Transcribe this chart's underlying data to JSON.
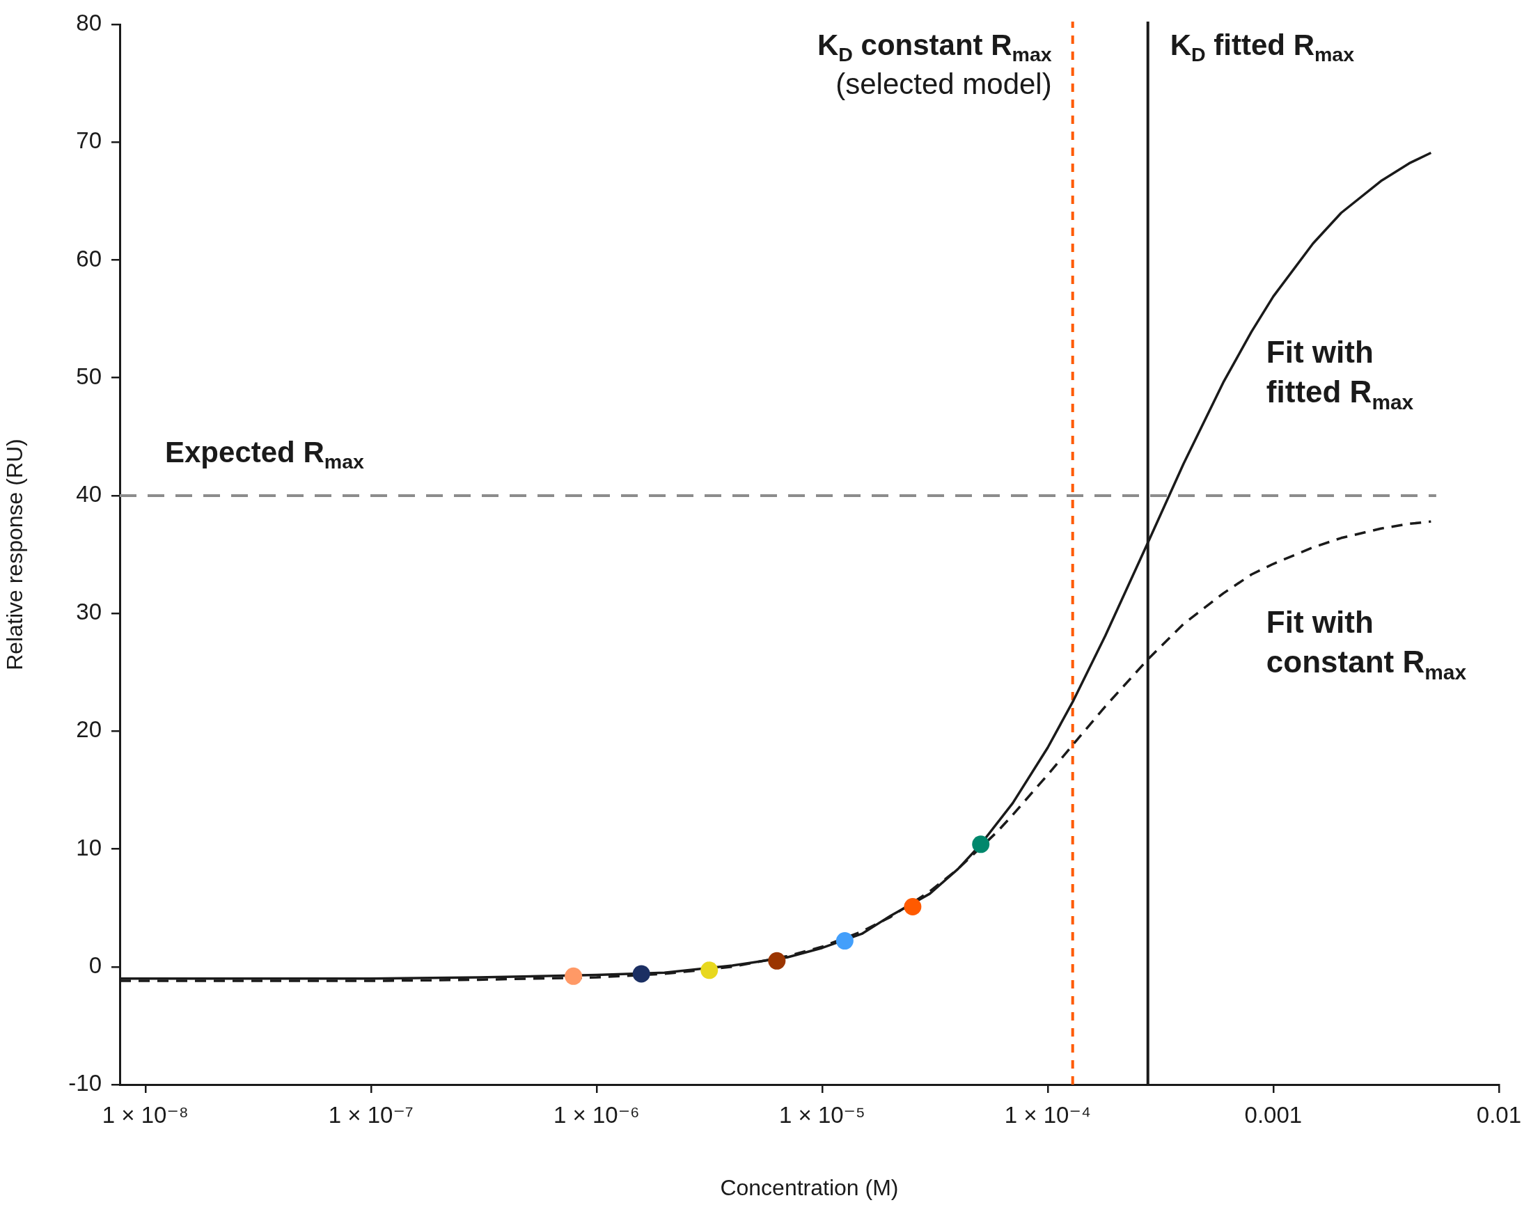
{
  "chart_data": {
    "type": "line",
    "xlabel": "Concentration (M)",
    "ylabel": "Relative response (RU)",
    "log": "x",
    "grid": false,
    "xlim": [
      7.7e-09,
      0.01
    ],
    "xticks": [
      {
        "value": 1e-08,
        "label": "1 × 10⁻⁸"
      },
      {
        "value": 1e-07,
        "label": "1 × 10⁻⁷"
      },
      {
        "value": 1e-06,
        "label": "1 × 10⁻⁶"
      },
      {
        "value": 1e-05,
        "label": "1 × 10⁻⁵"
      },
      {
        "value": 0.0001,
        "label": "1 × 10⁻⁴"
      },
      0.001,
      0.01
    ],
    "ylim": [
      -10,
      80
    ],
    "yticks": [
      -10,
      0,
      10,
      20,
      30,
      40,
      50,
      60,
      70,
      80
    ],
    "series": [
      {
        "name": "Fit with fitted R$_{max}$",
        "color": "#1a1a1a",
        "line_style": "solid",
        "marker": "none",
        "x": [
          7.7e-09,
          3e-08,
          1e-07,
          3e-07,
          1e-06,
          2e-06,
          4e-06,
          7e-06,
          1e-05,
          1.5e-05,
          2e-05,
          3e-05,
          4e-05,
          5e-05,
          7e-05,
          0.0001,
          0.00013,
          0.00018,
          0.000278,
          0.0004,
          0.0006,
          0.0008,
          0.001,
          0.0015,
          0.002,
          0.003,
          0.004,
          0.005
        ],
        "values": [
          -1.0,
          -1.0,
          -1.0,
          -0.9,
          -0.7,
          -0.5,
          0.1,
          0.8,
          1.6,
          2.8,
          4.3,
          6.2,
          8.3,
          10.3,
          13.9,
          18.6,
          22.6,
          28.1,
          36.0,
          42.7,
          49.6,
          53.9,
          56.9,
          61.4,
          64.0,
          66.7,
          68.2,
          69.1
        ]
      },
      {
        "name": "Fit with constant R$_{max}$",
        "color": "#1a1a1a",
        "line_style": "dashed",
        "marker": "none",
        "x": [
          7.7e-09,
          3e-08,
          1e-07,
          3e-07,
          1e-06,
          2e-06,
          4e-06,
          7e-06,
          1e-05,
          1.5e-05,
          2e-05,
          3e-05,
          4e-05,
          6e-05,
          7e-05,
          0.0001,
          0.00013,
          0.00018,
          0.000278,
          0.0004,
          0.0006,
          0.0008,
          0.001,
          0.0015,
          0.002,
          0.003,
          0.004,
          0.005
        ],
        "values": [
          -1.2,
          -1.2,
          -1.2,
          -1.1,
          -0.9,
          -0.6,
          0.0,
          0.9,
          1.7,
          3.0,
          4.2,
          6.4,
          8.3,
          11.5,
          12.9,
          16.3,
          18.9,
          22.1,
          26.1,
          29.1,
          31.7,
          33.3,
          34.2,
          35.6,
          36.4,
          37.2,
          37.6,
          37.8
        ]
      },
      {
        "type": "scatter",
        "marker": "circle",
        "x": [
          7.9e-07,
          1.58e-06,
          3.16e-06,
          6.3e-06,
          1.26e-05,
          2.52e-05,
          5.05e-05
        ],
        "values": [
          -0.8,
          -0.6,
          -0.3,
          0.5,
          2.2,
          5.1,
          10.4
        ],
        "colors": [
          "#ff9966",
          "#1b2f63",
          "#e8d81e",
          "#9b3500",
          "#439ffb",
          "#ff5a00",
          "#00876c"
        ]
      }
    ],
    "ref_lines": [
      {
        "axis": "x",
        "value": 0.000129,
        "label": "K$_{D}$ constant R$_{max}$\n(selected model)",
        "color": "#ff5a00",
        "line_style": "dotted"
      },
      {
        "axis": "x",
        "value": 0.000278,
        "label": "K$_{D}$ fitted R$_{max}$",
        "color": "#1a1a1a",
        "line_style": "solid"
      },
      {
        "axis": "y",
        "value": 40,
        "label": "Expected R$_{max}$",
        "color": "#8c8c8c",
        "line_style": "dashed"
      }
    ]
  }
}
